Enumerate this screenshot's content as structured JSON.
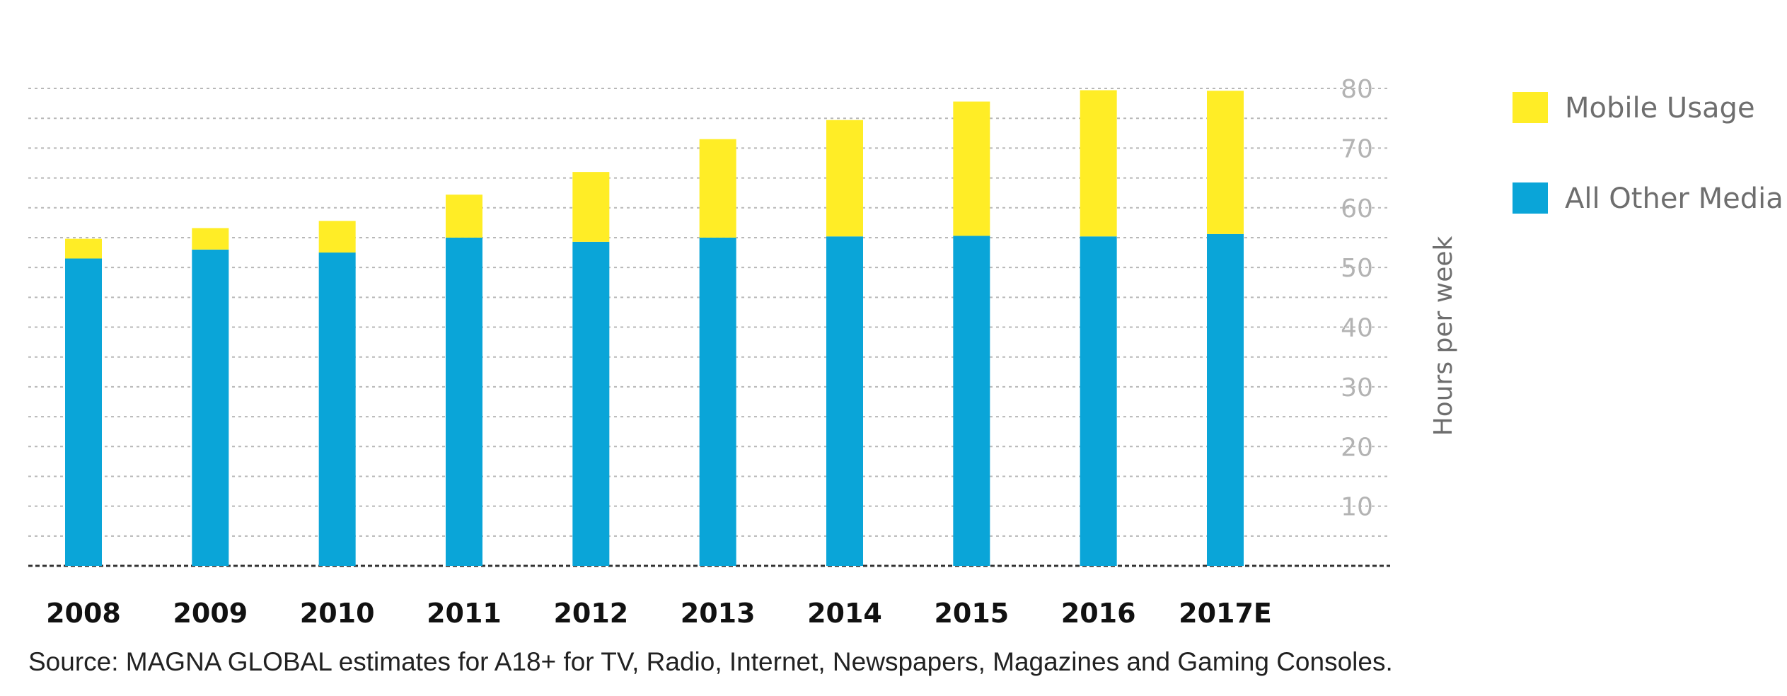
{
  "chart_data": {
    "type": "bar",
    "stacked": true,
    "categories": [
      "2008",
      "2009",
      "2010",
      "2011",
      "2012",
      "2013",
      "2014",
      "2015",
      "2016",
      "2017E"
    ],
    "series": [
      {
        "name": "All Other Media",
        "color": "#0aa5d8",
        "values": [
          51.5,
          53,
          52.5,
          55,
          54.3,
          55,
          55.2,
          55.3,
          55.2,
          55.6
        ]
      },
      {
        "name": "Mobile Usage",
        "color": "#ffed26",
        "values": [
          3.3,
          3.6,
          5.3,
          7.2,
          11.7,
          16.5,
          19.5,
          22.5,
          24.5,
          24
        ]
      }
    ],
    "xlabel": "",
    "ylabel": "Hours per week",
    "ylim": [
      0,
      80
    ],
    "yticks": [
      10,
      20,
      30,
      40,
      50,
      60,
      70,
      80
    ],
    "grid": true,
    "legend_position": "top-right",
    "legend_order": [
      "Mobile Usage",
      "All Other Media"
    ],
    "source": "Source: MAGNA GLOBAL estimates for A18+ for TV, Radio, Internet, Newspapers, Magazines and Gaming Consoles."
  }
}
